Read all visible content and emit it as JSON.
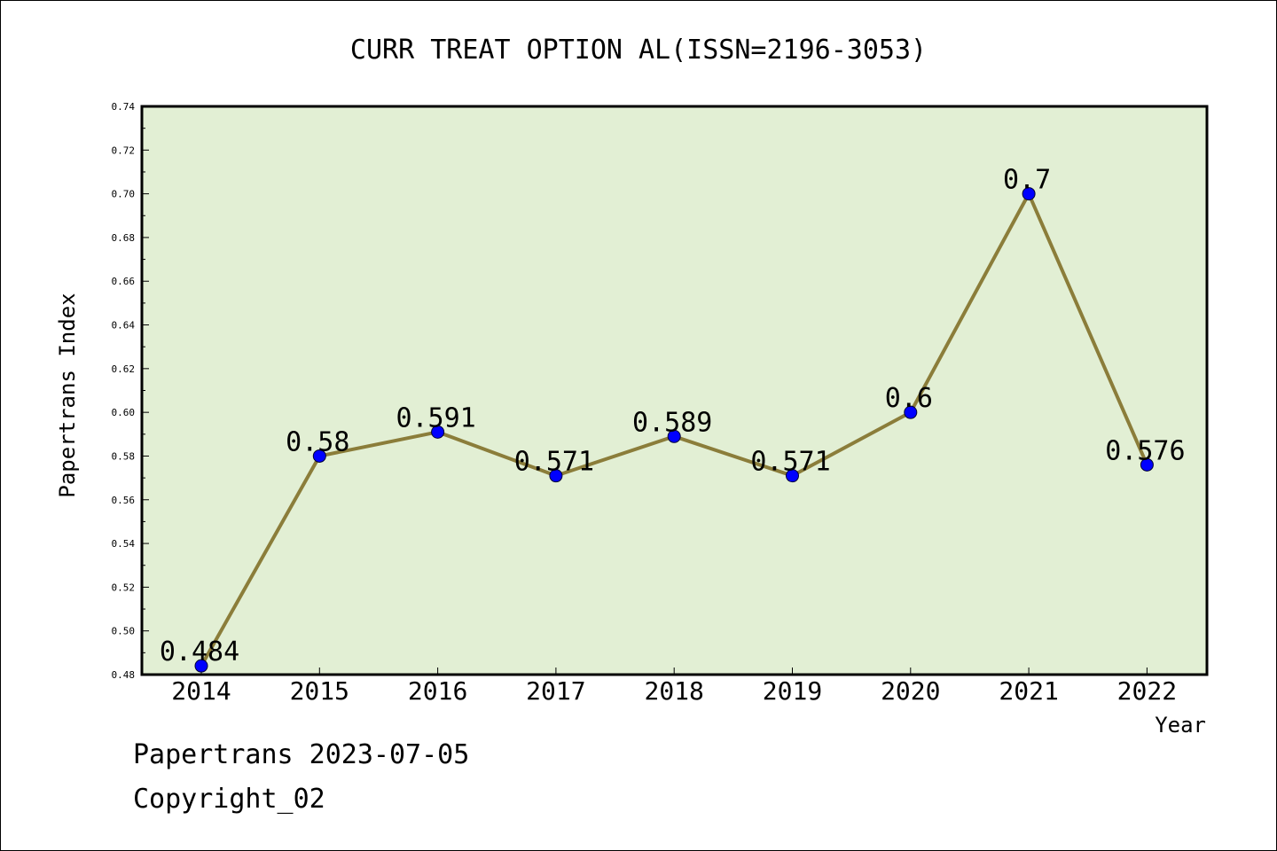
{
  "chart_data": {
    "type": "line",
    "title": "CURR TREAT OPTION AL(ISSN=2196-3053)",
    "xlabel": "Year",
    "ylabel": "Papertrans Index",
    "categories": [
      "2014",
      "2015",
      "2016",
      "2017",
      "2018",
      "2019",
      "2020",
      "2021",
      "2022"
    ],
    "series": [
      {
        "values": [
          0.484,
          0.58,
          0.591,
          0.571,
          0.589,
          0.571,
          0.6,
          0.7,
          0.576
        ],
        "labels": [
          "0.484",
          "0.58",
          "0.591",
          "0.571",
          "0.589",
          "0.571",
          "0.6",
          "0.7",
          "0.576"
        ],
        "line_color": "#8b7d3a",
        "marker_color": "#0000ff"
      }
    ],
    "ylim": [
      0.48,
      0.74
    ],
    "yticks": [
      "0.48",
      "0.50",
      "0.52",
      "0.54",
      "0.56",
      "0.58",
      "0.60",
      "0.62",
      "0.64",
      "0.66",
      "0.68",
      "0.70",
      "0.72",
      "0.74"
    ],
    "plot_background": "#e2efd4",
    "grid": false,
    "legend": "none"
  },
  "footer": {
    "line1": "Papertrans 2023-07-05",
    "line2": "Copyright_02"
  }
}
